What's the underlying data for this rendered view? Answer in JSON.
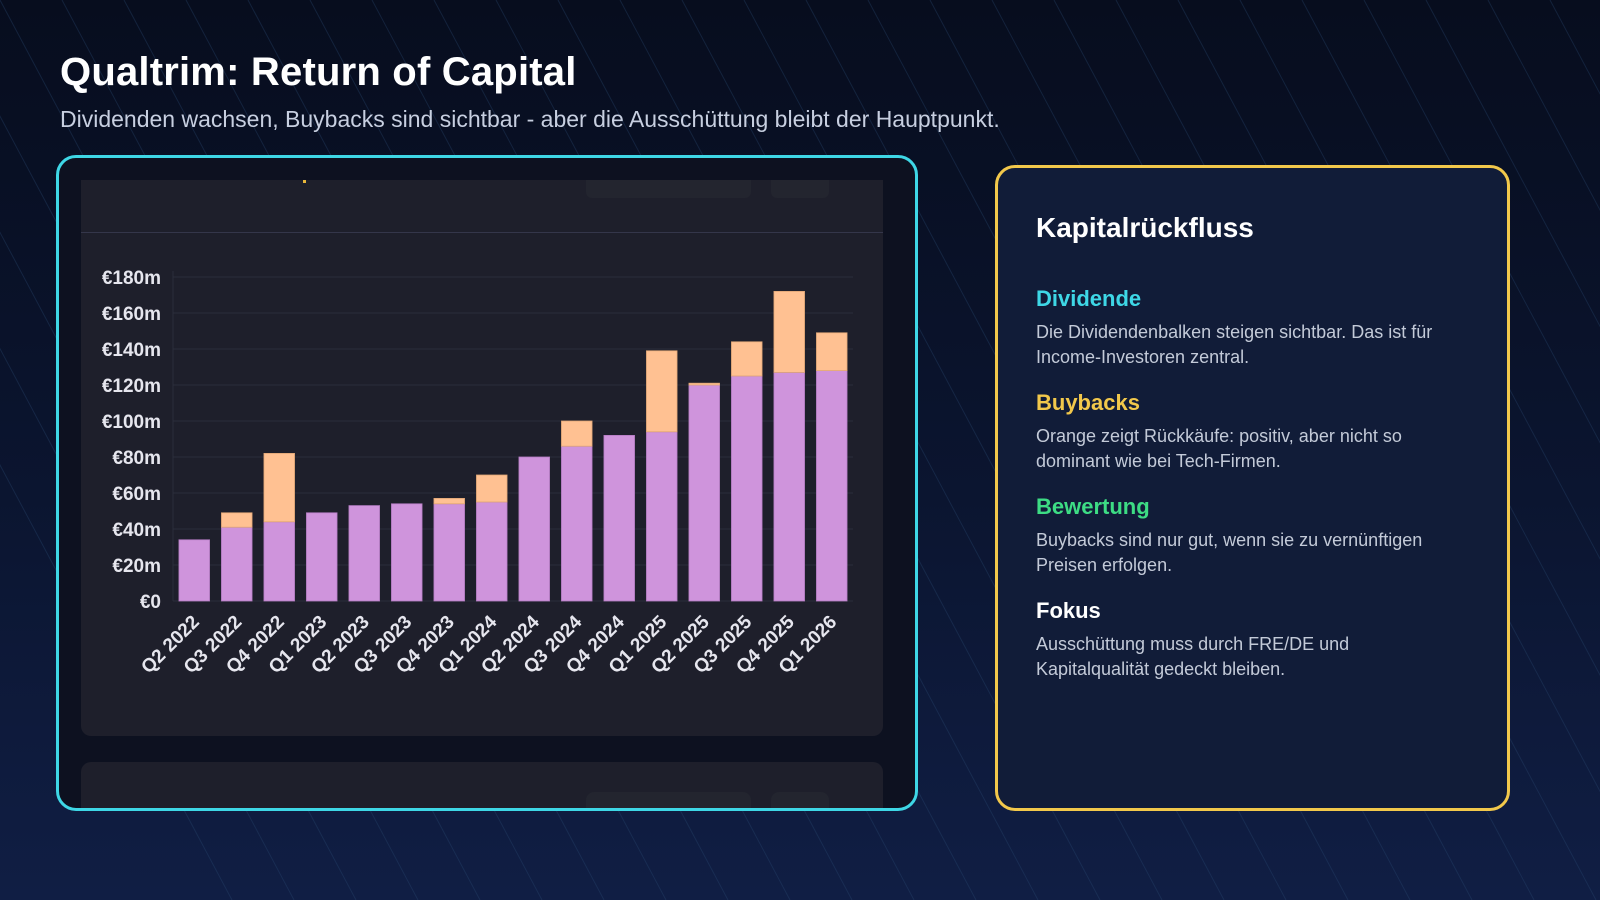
{
  "header": {
    "title": "Qualtrim: Return of Capital",
    "subtitle": "Dividenden wachsen, Buybacks sind sichtbar - aber die Ausschüttung bleibt der Hauptpunkt."
  },
  "colors": {
    "dividend": "#cf94dc",
    "buyback": "#ffc192",
    "chart_frame": "#3ed7e6",
    "panel_border": "#f2c84b",
    "dividend_heading": "#3ed7e6",
    "buyback_heading": "#f2c84b",
    "valuation_heading": "#3ddc84",
    "focus_heading": "#ffffff"
  },
  "chart_data": {
    "type": "bar",
    "stacked": true,
    "categories": [
      "Q2 2022",
      "Q3 2022",
      "Q4 2022",
      "Q1 2023",
      "Q2 2023",
      "Q3 2023",
      "Q4 2023",
      "Q1 2024",
      "Q2 2024",
      "Q3 2024",
      "Q4 2024",
      "Q1 2025",
      "Q2 2025",
      "Q3 2025",
      "Q4 2025",
      "Q1 2026"
    ],
    "series": [
      {
        "key": "dividend",
        "values": [
          34,
          41,
          44,
          49,
          53,
          54,
          54,
          55,
          80,
          86,
          92,
          94,
          120,
          125,
          127,
          128
        ]
      },
      {
        "key": "buyback",
        "values": [
          0,
          8,
          38,
          0,
          0,
          0,
          3,
          15,
          0,
          14,
          0,
          45,
          1,
          19,
          45,
          21
        ]
      }
    ],
    "ylim": [
      0,
      180
    ],
    "yticks": [
      0,
      20,
      40,
      60,
      80,
      100,
      120,
      140,
      160,
      180
    ],
    "ytick_labels": [
      "€0",
      "€20m",
      "€40m",
      "€60m",
      "€80m",
      "€100m",
      "€120m",
      "€140m",
      "€160m",
      "€180m"
    ],
    "grid": true,
    "legend": "none"
  },
  "panel": {
    "title": "Kapitalrückfluss",
    "sections": [
      {
        "heading": "Dividende",
        "text": "Die Dividendenbalken steigen sichtbar. Das ist für Income-Investoren zentral."
      },
      {
        "heading": "Buybacks",
        "text": "Orange zeigt Rückkäufe: positiv, aber nicht so dominant wie bei Tech-Firmen."
      },
      {
        "heading": "Bewertung",
        "text": "Buybacks sind nur gut, wenn sie zu vernünftigen Preisen erfolgen."
      },
      {
        "heading": "Fokus",
        "text": "Ausschüttung muss durch FRE/DE und Kapitalqualität gedeckt bleiben."
      }
    ]
  }
}
